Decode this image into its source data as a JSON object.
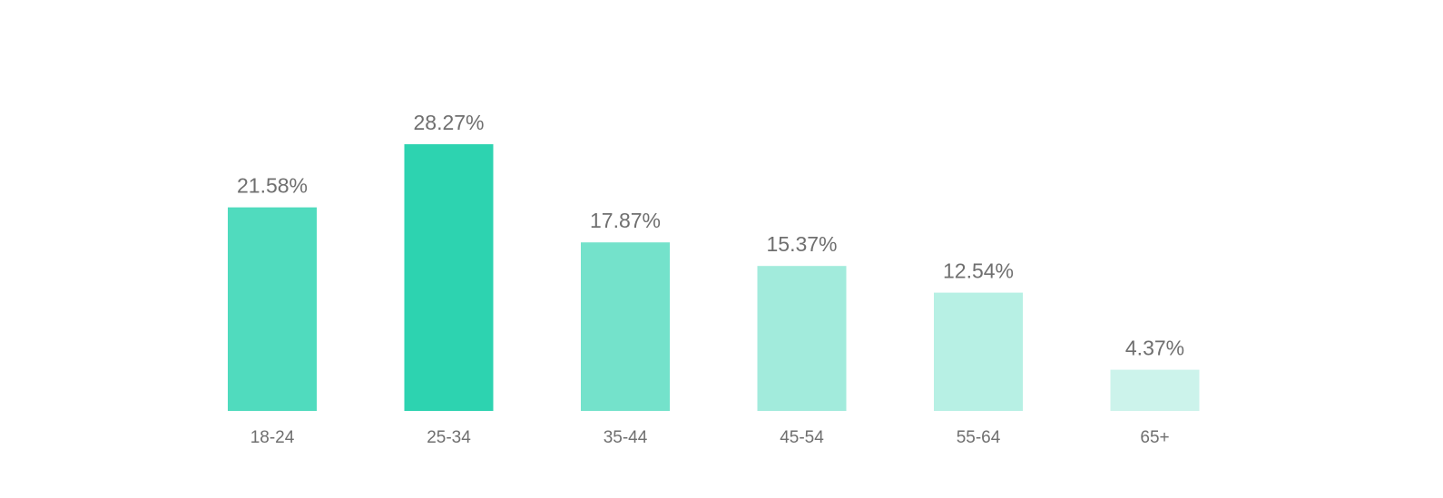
{
  "chart_data": {
    "type": "bar",
    "title": "",
    "xlabel": "",
    "ylabel": "",
    "categories": [
      "18-24",
      "25-34",
      "35-44",
      "45-54",
      "55-64",
      "65+"
    ],
    "values": [
      21.58,
      28.27,
      17.87,
      15.37,
      12.54,
      4.37
    ],
    "value_labels": [
      "21.58%",
      "28.27%",
      "17.87%",
      "15.37%",
      "12.54%",
      "4.37%"
    ],
    "colors": [
      "#50dbbe",
      "#2dd3b0",
      "#74e2cb",
      "#a2ebdc",
      "#b7f0e4",
      "#ccf3eb"
    ],
    "ylim": [
      0,
      28.27
    ],
    "grid": false,
    "legend": "none"
  }
}
